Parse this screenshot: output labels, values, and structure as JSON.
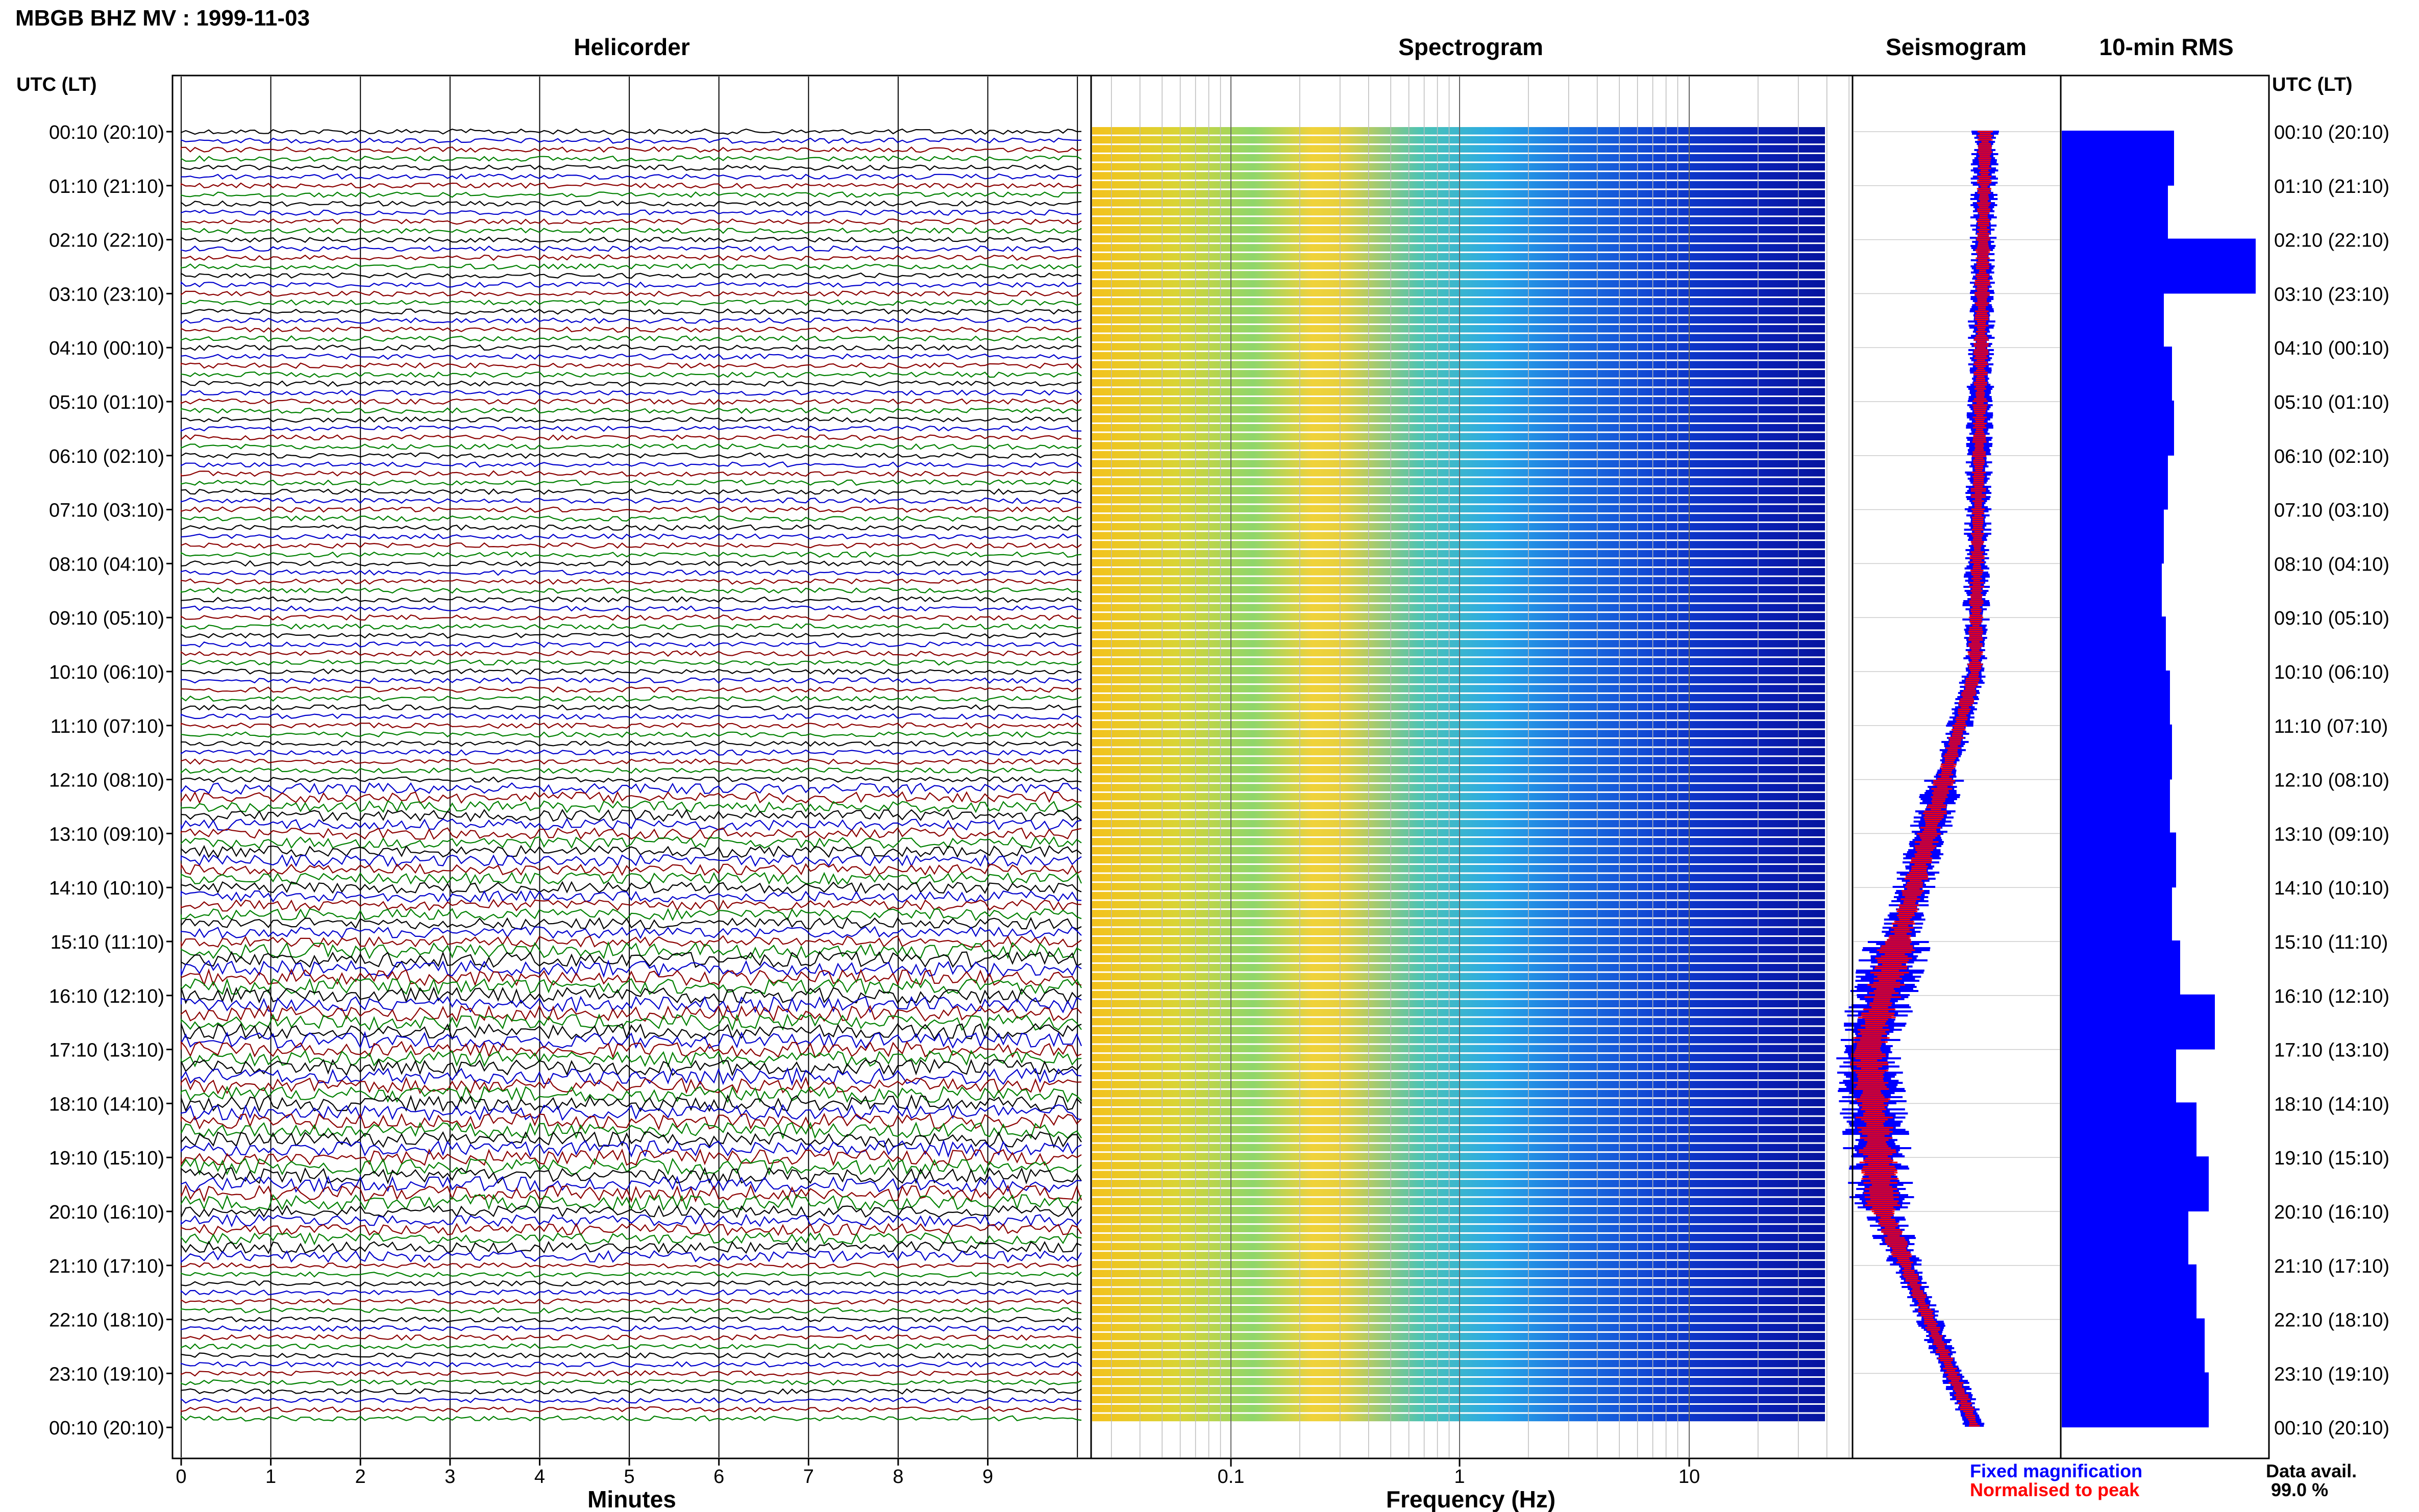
{
  "header": {
    "station_title": "MBGB BHZ MV : 1999-11-03",
    "utc_lt_left": "UTC (LT)",
    "utc_lt_right": "UTC (LT)"
  },
  "panels": {
    "helicorder": "Helicorder",
    "spectrogram": "Spectrogram",
    "seismogram": "Seismogram",
    "rms": "10-min RMS"
  },
  "axes": {
    "minutes_label": "Minutes",
    "frequency_label": "Frequency (Hz)",
    "minute_ticks": [
      "0",
      "1",
      "2",
      "3",
      "4",
      "5",
      "6",
      "7",
      "8",
      "9"
    ],
    "freq_ticks": [
      "0.1",
      "1",
      "10"
    ]
  },
  "time_labels": [
    "00:10 (20:10)",
    "01:10 (21:10)",
    "02:10 (22:10)",
    "03:10 (23:10)",
    "04:10 (00:10)",
    "05:10 (01:10)",
    "06:10 (02:10)",
    "07:10 (03:10)",
    "08:10 (04:10)",
    "09:10 (05:10)",
    "10:10 (06:10)",
    "11:10 (07:10)",
    "12:10 (08:10)",
    "13:10 (09:10)",
    "14:10 (10:10)",
    "15:10 (11:10)",
    "16:10 (12:10)",
    "17:10 (13:10)",
    "18:10 (14:10)",
    "19:10 (15:10)",
    "20:10 (16:10)",
    "21:10 (17:10)",
    "22:10 (18:10)",
    "23:10 (19:10)",
    "00:10 (20:10)"
  ],
  "legend": {
    "fixed": "Fixed magnification",
    "normalised": "Normalised to peak",
    "fixed_color": "#0000ff",
    "normalised_color": "#ff0000"
  },
  "availability": {
    "label": "Data avail.",
    "value": "99.0 %"
  },
  "colors": {
    "trace_cycle": [
      "#000000",
      "#0000cc",
      "#8b0000",
      "#008000"
    ],
    "rms_bar": "#0000ff"
  },
  "chart_data": {
    "type": "bar",
    "title": "10-min RMS",
    "y_categories": [
      "00:10 (20:10)",
      "01:10 (21:10)",
      "02:10 (22:10)",
      "03:10 (23:10)",
      "04:10 (00:10)",
      "05:10 (01:10)",
      "06:10 (02:10)",
      "07:10 (03:10)",
      "08:10 (04:10)",
      "09:10 (05:10)",
      "10:10 (06:10)",
      "11:10 (07:10)",
      "12:10 (08:10)",
      "13:10 (09:10)",
      "14:10 (10:10)",
      "15:10 (11:10)",
      "16:10 (12:10)",
      "17:10 (13:10)",
      "18:10 (14:10)",
      "19:10 (15:10)",
      "20:10 (16:10)",
      "21:10 (17:10)",
      "22:10 (18:10)",
      "23:10 (19:10)"
    ],
    "values": [
      0.55,
      0.52,
      0.95,
      0.5,
      0.54,
      0.55,
      0.52,
      0.5,
      0.49,
      0.51,
      0.53,
      0.54,
      0.53,
      0.56,
      0.54,
      0.58,
      0.75,
      0.56,
      0.66,
      0.72,
      0.62,
      0.66,
      0.7,
      0.72
    ],
    "xlim": [
      0,
      1
    ]
  }
}
